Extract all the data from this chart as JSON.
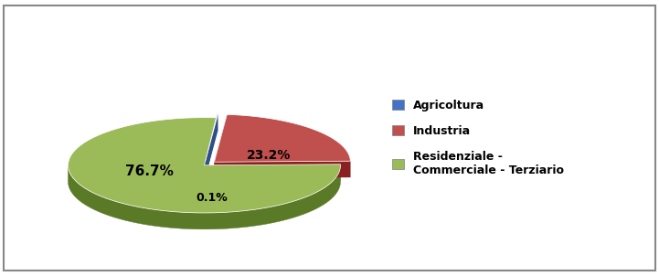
{
  "labels": [
    "Agricoltura",
    "Industria",
    "Residenziale -\nCommerciale - Terziario"
  ],
  "values": [
    0.1,
    23.2,
    76.7
  ],
  "colors": [
    "#4472C4",
    "#C0504D",
    "#9BBB59"
  ],
  "dark_colors": [
    "#2E4F8A",
    "#8B2020",
    "#5A7A28"
  ],
  "explode": [
    0.08,
    0.1,
    0.0
  ],
  "autopct_labels": [
    "0.1%",
    "23.2%",
    "76.7%"
  ],
  "legend_labels": [
    "Agricoltura",
    "Industria",
    "Residenziale -\nCommerciale - Terziario"
  ],
  "background_color": "#FFFFFF",
  "border_color": "#888888",
  "startangle": 85,
  "figsize": [
    7.21,
    3.02
  ],
  "dpi": 100,
  "depth": 0.12,
  "ellipse_ratio": 0.35
}
